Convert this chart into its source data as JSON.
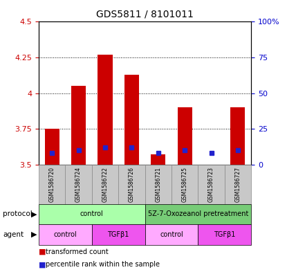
{
  "title": "GDS5811 / 8101011",
  "samples": [
    "GSM1586720",
    "GSM1586724",
    "GSM1586722",
    "GSM1586726",
    "GSM1586721",
    "GSM1586725",
    "GSM1586723",
    "GSM1586727"
  ],
  "red_values": [
    3.75,
    4.05,
    4.27,
    4.13,
    3.57,
    3.9,
    3.5,
    3.9
  ],
  "blue_percentile": [
    8,
    10,
    12,
    12,
    8,
    10,
    8,
    10
  ],
  "bar_bottom": 3.5,
  "ylim_left": [
    3.5,
    4.5
  ],
  "ylim_right": [
    0,
    100
  ],
  "yticks_left": [
    3.5,
    3.75,
    4.0,
    4.25,
    4.5
  ],
  "yticks_right": [
    0,
    25,
    50,
    75,
    100
  ],
  "ytick_labels_left": [
    "3.5",
    "3.75",
    "4",
    "4.25",
    "4.5"
  ],
  "ytick_labels_right": [
    "0",
    "25",
    "50",
    "75",
    "100%"
  ],
  "protocol_groups": [
    {
      "label": "control",
      "start": 0,
      "end": 4,
      "color": "#AAFFAA"
    },
    {
      "label": "5Z-7-Oxozeanol pretreatment",
      "start": 4,
      "end": 8,
      "color": "#77CC77"
    }
  ],
  "agent_groups": [
    {
      "label": "control",
      "start": 0,
      "end": 2,
      "color": "#FFAAFF"
    },
    {
      "label": "TGFβ1",
      "start": 2,
      "end": 4,
      "color": "#EE55EE"
    },
    {
      "label": "control",
      "start": 4,
      "end": 6,
      "color": "#FFAAFF"
    },
    {
      "label": "TGFβ1",
      "start": 6,
      "end": 8,
      "color": "#EE55EE"
    }
  ],
  "red_color": "#CC0000",
  "blue_color": "#2222CC",
  "bar_width": 0.55,
  "left_label_color": "#CC0000",
  "right_label_color": "#0000CC",
  "legend_red_label": "transformed count",
  "legend_blue_label": "percentile rank within the sample",
  "sample_box_color": "#C8C8C8",
  "sample_box_edge": "#888888"
}
